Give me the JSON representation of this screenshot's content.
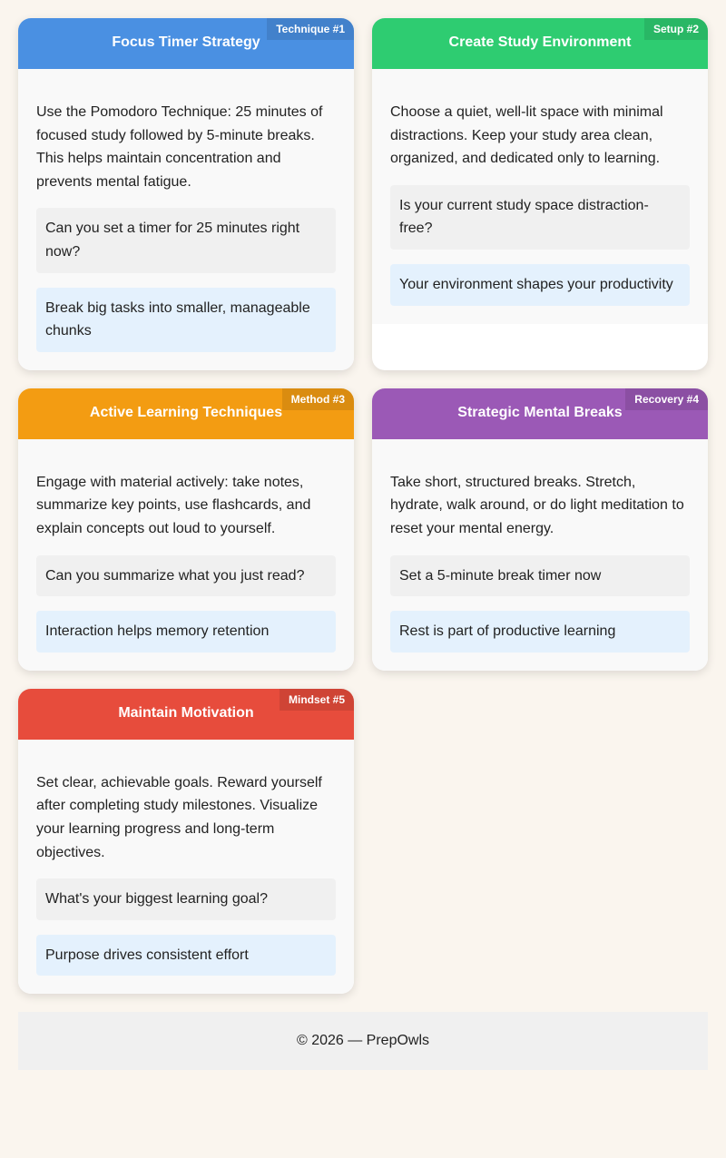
{
  "cards": [
    {
      "title": "Focus Timer Strategy",
      "badge": "Technique #1",
      "color": "#4a90e2",
      "text": "Use the Pomodoro Technique: 25 minutes of focused study followed by 5-minute breaks. This helps maintain concentration and prevents mental fatigue.",
      "question": "Can you set a timer for 25 minutes right now?",
      "tip": "Break big tasks into smaller, manageable chunks"
    },
    {
      "title": "Create Study Environment",
      "badge": "Setup #2",
      "color": "#2ecc71",
      "text": "Choose a quiet, well-lit space with minimal distractions. Keep your study area clean, organized, and dedicated only to learning.",
      "question": "Is your current study space distraction-free?",
      "tip": "Your environment shapes your productivity"
    },
    {
      "title": "Active Learning Techniques",
      "badge": "Method #3",
      "color": "#f39c12",
      "text": "Engage with material actively: take notes, summarize key points, use flashcards, and explain concepts out loud to yourself.",
      "question": "Can you summarize what you just read?",
      "tip": "Interaction helps memory retention"
    },
    {
      "title": "Strategic Mental Breaks",
      "badge": "Recovery #4",
      "color": "#9b59b6",
      "text": "Take short, structured breaks. Stretch, hydrate, walk around, or do light meditation to reset your mental energy.",
      "question": "Set a 5-minute break timer now",
      "tip": "Rest is part of productive learning"
    },
    {
      "title": "Maintain Motivation",
      "badge": "Mindset #5",
      "color": "#e74c3c",
      "text": "Set clear, achievable goals. Reward yourself after completing study milestones. Visualize your learning progress and long-term objectives.",
      "question": "What's your biggest learning goal?",
      "tip": "Purpose drives consistent effort"
    }
  ],
  "footer": {
    "text": "© 2026 — PrepOwls"
  }
}
